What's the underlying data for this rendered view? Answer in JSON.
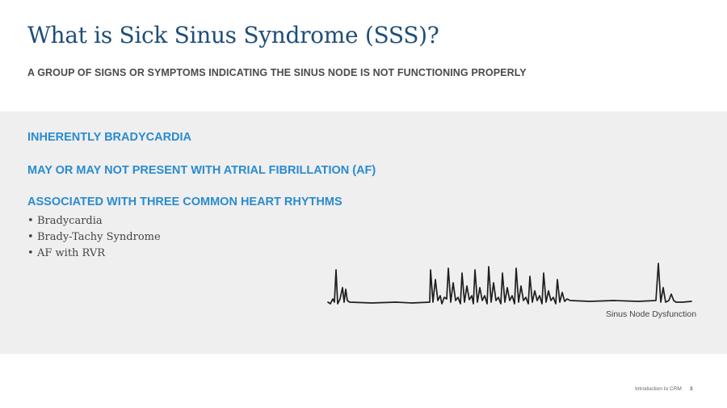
{
  "slide": {
    "title": "What is Sick Sinus Syndrome (SSS)?",
    "subtitle": "A GROUP OF SIGNS OR SYMPTOMS INDICATING THE SINUS NODE IS NOT FUNCTIONING PROPERLY"
  },
  "panel": {
    "headings": [
      "INHERENTLY BRADYCARDIA",
      "MAY OR MAY NOT PRESENT WITH ATRIAL FIBRILLATION (AF)",
      "ASSOCIATED WITH THREE COMMON HEART RHYTHMS"
    ],
    "bullets": [
      "Bradycardia",
      "Brady-Tachy Syndrome",
      "AF with RVR"
    ],
    "bullet_char": "•",
    "figure_caption": "Sinus Node Dysfunction"
  },
  "footer": {
    "text": "Introduction to CRM",
    "page": "3"
  },
  "colors": {
    "title": "#1f4e79",
    "heading": "#2a8bcf",
    "panel_bg": "#efefef"
  }
}
